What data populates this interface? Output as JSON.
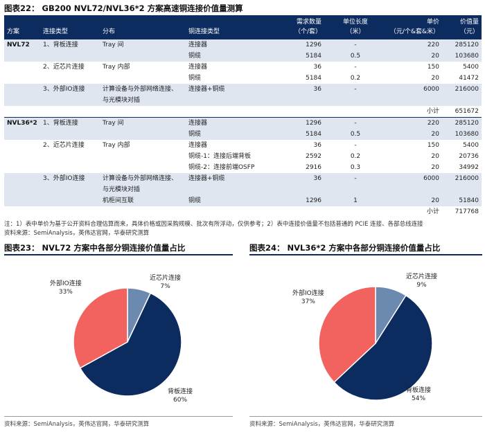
{
  "table_title": "图表22： GB200 NVL72/NVL36*2 方案高速铜连接价值量测算",
  "table_headers": {
    "scheme": "方案",
    "conn_type": "连接类型",
    "distribution": "分布",
    "copper_type": "铜连接类型",
    "quantity": [
      "需求数量",
      "（个/套）"
    ],
    "unit_length": [
      "单位长度",
      "（米）"
    ],
    "unit_price": [
      "单价",
      "（元/个&套&米）"
    ],
    "value": [
      "价值量",
      "（元）"
    ]
  },
  "nvl72": {
    "name": "NVL72",
    "rows": [
      {
        "type": "1、背板连接",
        "dist": "Tray 间",
        "copper": "连接器",
        "qty": "1296",
        "len": "-",
        "price": "220",
        "value": "285120"
      },
      {
        "type": "",
        "dist": "",
        "copper": "铜缆",
        "qty": "5184",
        "len": "0.5",
        "price": "20",
        "value": "103680"
      },
      {
        "type": "2、近芯片连接",
        "dist": "Tray 内部",
        "copper": "连接器",
        "qty": "36",
        "len": "-",
        "price": "150",
        "value": "5400"
      },
      {
        "type": "",
        "dist": "",
        "copper": "铜缆",
        "qty": "5184",
        "len": "0.2",
        "price": "20",
        "value": "41472"
      },
      {
        "type": "3、外部IO连接",
        "dist": "计算设备与外部网络连接、",
        "copper": "连接器+铜缆",
        "qty": "36",
        "len": "-",
        "price": "6000",
        "value": "216000"
      },
      {
        "type": "",
        "dist": "与光模块对插",
        "copper": "",
        "qty": "",
        "len": "",
        "price": "",
        "value": ""
      }
    ],
    "subtotal_label": "小计",
    "subtotal": "651672"
  },
  "nvl36": {
    "name": "NVL36*2",
    "rows": [
      {
        "type": "1、背板连接",
        "dist": "Tray 间",
        "copper": "连接器",
        "qty": "1296",
        "len": "-",
        "price": "220",
        "value": "285120"
      },
      {
        "type": "",
        "dist": "",
        "copper": "铜缆",
        "qty": "5184",
        "len": "0.5",
        "price": "20",
        "value": "103680"
      },
      {
        "type": "2、近芯片连接",
        "dist": "Tray 内部",
        "copper": "连接器",
        "qty": "36",
        "len": "-",
        "price": "150",
        "value": "5400"
      },
      {
        "type": "",
        "dist": "",
        "copper": "铜缆-1：连接后端背板",
        "qty": "2592",
        "len": "0.2",
        "price": "20",
        "value": "20736"
      },
      {
        "type": "",
        "dist": "",
        "copper": "铜缆-2：连接前端OSFP",
        "qty": "2916",
        "len": "0.3",
        "price": "20",
        "value": "34992"
      },
      {
        "type": "3、外部IO连接",
        "dist": "计算设备与外部网络连接、",
        "copper": "连接器+铜缆",
        "qty": "36",
        "len": "-",
        "price": "6000",
        "value": "216000"
      },
      {
        "type": "",
        "dist": "与光模块对插",
        "copper": "",
        "qty": "",
        "len": "",
        "price": "",
        "value": ""
      },
      {
        "type": "",
        "dist": "机柜间互联",
        "copper": "铜缆",
        "qty": "1296",
        "len": "1",
        "price": "20",
        "value": "51840"
      }
    ],
    "subtotal_label": "小计",
    "subtotal": "717768"
  },
  "notes": [
    "注：1）表中单价为基于公开资料合理估算而来，具体价格或因采购规模、批次有所浮动，仅供参考；2）表中连接价值量不包括普通的 PCIE 连接、各部总线连接",
    "资料来源：SemiAnalysis，英伟达官网，华泰研究测算"
  ],
  "chart23_title": "图表23： NVL72 方案中各部分铜连接价值量占比",
  "chart24_title": "图表24： NVL36*2 方案中各部分铜连接价值量占比",
  "source_text": "资料来源：SemiAnalysis，英伟达官网，华泰研究测算",
  "colors": {
    "navy": "#0c2b5e",
    "red": "#f2625e",
    "steel": "#6c8ab0",
    "shade": "#dfe6f0"
  },
  "chart_data": [
    {
      "type": "pie",
      "title": "图表23： NVL72 方案中各部分铜连接价值量占比",
      "categories": [
        "背板连接",
        "外部IO连接",
        "近芯片连接"
      ],
      "values": [
        60,
        33,
        7
      ],
      "labels": [
        "60%",
        "33%",
        "7%"
      ],
      "colors": [
        "#0c2b5e",
        "#f2625e",
        "#6c8ab0"
      ]
    },
    {
      "type": "pie",
      "title": "图表24： NVL36*2 方案中各部分铜连接价值量占比",
      "categories": [
        "背板连接",
        "外部IO连接",
        "近芯片连接"
      ],
      "values": [
        54,
        37,
        9
      ],
      "labels": [
        "54%",
        "37%",
        "9%"
      ],
      "colors": [
        "#0c2b5e",
        "#f2625e",
        "#6c8ab0"
      ]
    }
  ]
}
